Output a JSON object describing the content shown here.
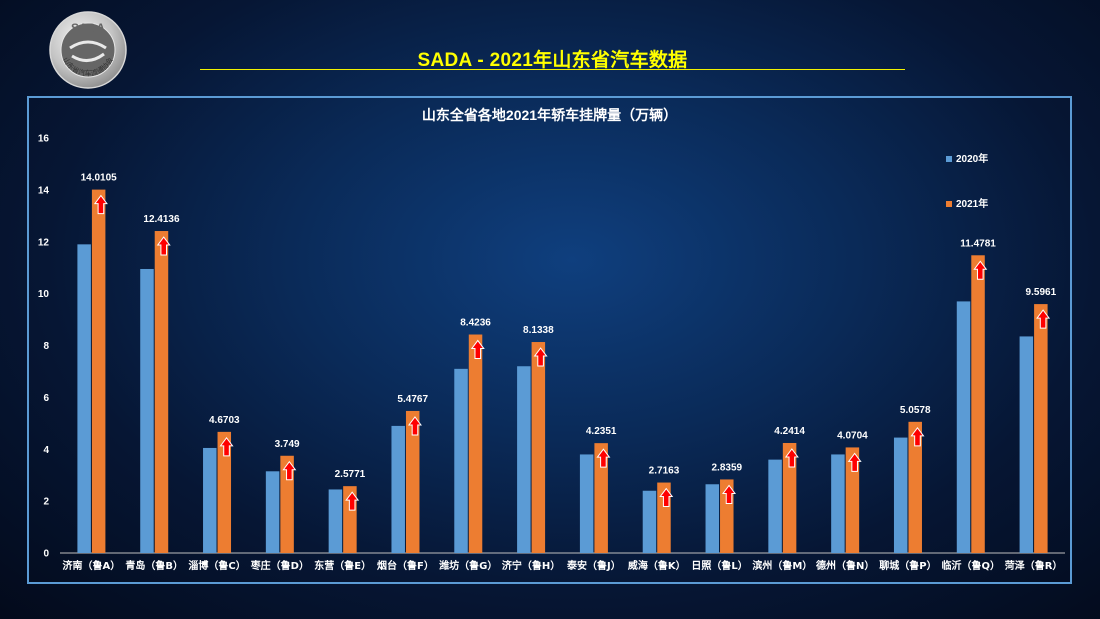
{
  "header": {
    "logo_text_top": "SADA",
    "logo_text_ring": "山东省汽车流通协会",
    "title": "SADA -  2021年山东省汽车数据"
  },
  "chart_data": {
    "type": "bar",
    "title": "山东全省各地2021年轿车挂牌量（万辆）",
    "xlabel": "",
    "ylabel": "",
    "ylim": [
      0,
      16
    ],
    "yticks": [
      0,
      2,
      4,
      6,
      8,
      10,
      12,
      14,
      16
    ],
    "grid": false,
    "legend_position": "right",
    "categories": [
      "济南（鲁A）",
      "青岛（鲁B）",
      "淄博（鲁C）",
      "枣庄（鲁D）",
      "东营（鲁E）",
      "烟台（鲁F）",
      "潍坊（鲁G）",
      "济宁（鲁H）",
      "泰安（鲁J）",
      "威海（鲁K）",
      "日照（鲁L）",
      "滨州（鲁M）",
      "德州（鲁N）",
      "聊城（鲁P）",
      "临沂（鲁Q）",
      "菏泽（鲁R）"
    ],
    "series": [
      {
        "name": "2020年",
        "color": "#5b9bd5",
        "values": [
          11.9,
          10.95,
          4.05,
          3.15,
          2.45,
          4.9,
          7.1,
          7.2,
          3.8,
          2.4,
          2.65,
          3.6,
          3.8,
          4.45,
          9.7,
          8.35
        ]
      },
      {
        "name": "2021年",
        "color": "#ed7d31",
        "values": [
          14.0105,
          12.4136,
          4.6703,
          3.749,
          2.5771,
          5.4767,
          8.4236,
          8.1338,
          4.2351,
          2.7163,
          2.8359,
          4.2414,
          4.0704,
          5.0578,
          11.4781,
          9.5961
        ],
        "labels": [
          "14.0105",
          "12.4136",
          "4.6703",
          "3.749",
          "2.5771",
          "5.4767",
          "8.4236",
          "8.1338",
          "4.2351",
          "2.7163",
          "2.8359",
          "4.2414",
          "4.0704",
          "5.0578",
          "11.4781",
          "9.5961"
        ]
      }
    ],
    "annotation": "up-arrow-icon",
    "annotation_color": "#ff0000"
  }
}
